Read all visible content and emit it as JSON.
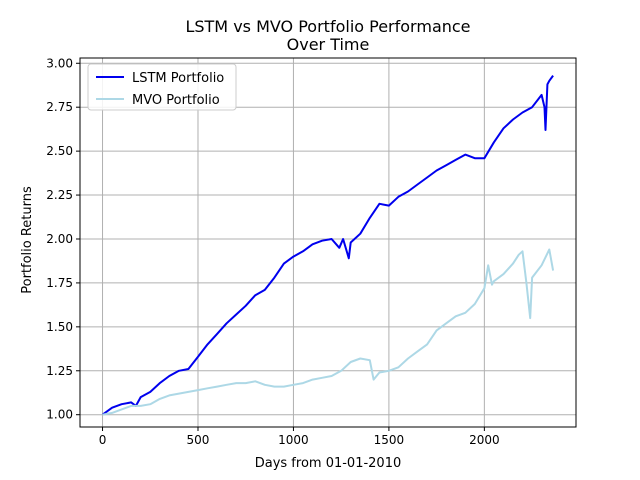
{
  "chart_data": {
    "type": "line",
    "title_line1": "LSTM vs MVO Portfolio Performance",
    "title_line2": "Over Time",
    "xlabel": "Days from 01-01-2010",
    "ylabel": "Portfolio Returns",
    "xlim": [
      -118,
      2480
    ],
    "ylim": [
      0.93,
      3.03
    ],
    "xticks": [
      0,
      500,
      1000,
      1500,
      2000
    ],
    "xtick_labels": [
      "0",
      "500",
      "1000",
      "1500",
      "2000"
    ],
    "yticks": [
      1.0,
      1.25,
      1.5,
      1.75,
      2.0,
      2.25,
      2.5,
      2.75,
      3.0
    ],
    "ytick_labels": [
      "1.00",
      "1.25",
      "1.50",
      "1.75",
      "2.00",
      "2.25",
      "2.50",
      "2.75",
      "3.00"
    ],
    "grid": true,
    "legend_position": "top-left",
    "series": [
      {
        "name": "LSTM Portfolio",
        "color": "#0000ee",
        "points": [
          [
            0,
            1.0
          ],
          [
            50,
            1.04
          ],
          [
            100,
            1.06
          ],
          [
            150,
            1.07
          ],
          [
            175,
            1.05
          ],
          [
            200,
            1.1
          ],
          [
            250,
            1.13
          ],
          [
            300,
            1.18
          ],
          [
            350,
            1.22
          ],
          [
            400,
            1.25
          ],
          [
            450,
            1.26
          ],
          [
            500,
            1.33
          ],
          [
            550,
            1.4
          ],
          [
            600,
            1.46
          ],
          [
            650,
            1.52
          ],
          [
            700,
            1.57
          ],
          [
            750,
            1.62
          ],
          [
            800,
            1.68
          ],
          [
            850,
            1.71
          ],
          [
            900,
            1.78
          ],
          [
            950,
            1.86
          ],
          [
            1000,
            1.9
          ],
          [
            1050,
            1.93
          ],
          [
            1100,
            1.97
          ],
          [
            1150,
            1.99
          ],
          [
            1200,
            2.0
          ],
          [
            1240,
            1.95
          ],
          [
            1260,
            2.0
          ],
          [
            1290,
            1.89
          ],
          [
            1300,
            1.98
          ],
          [
            1350,
            2.03
          ],
          [
            1400,
            2.12
          ],
          [
            1450,
            2.2
          ],
          [
            1500,
            2.19
          ],
          [
            1550,
            2.24
          ],
          [
            1600,
            2.27
          ],
          [
            1650,
            2.31
          ],
          [
            1700,
            2.35
          ],
          [
            1750,
            2.39
          ],
          [
            1800,
            2.42
          ],
          [
            1850,
            2.45
          ],
          [
            1900,
            2.48
          ],
          [
            1950,
            2.46
          ],
          [
            2000,
            2.46
          ],
          [
            2050,
            2.55
          ],
          [
            2100,
            2.63
          ],
          [
            2150,
            2.68
          ],
          [
            2200,
            2.72
          ],
          [
            2250,
            2.75
          ],
          [
            2300,
            2.82
          ],
          [
            2315,
            2.75
          ],
          [
            2320,
            2.62
          ],
          [
            2330,
            2.88
          ],
          [
            2340,
            2.9
          ],
          [
            2360,
            2.93
          ]
        ]
      },
      {
        "name": "MVO Portfolio",
        "color": "#add8e6",
        "points": [
          [
            0,
            1.0
          ],
          [
            50,
            1.01
          ],
          [
            100,
            1.03
          ],
          [
            150,
            1.05
          ],
          [
            200,
            1.05
          ],
          [
            250,
            1.06
          ],
          [
            300,
            1.09
          ],
          [
            350,
            1.11
          ],
          [
            400,
            1.12
          ],
          [
            450,
            1.13
          ],
          [
            500,
            1.14
          ],
          [
            550,
            1.15
          ],
          [
            600,
            1.16
          ],
          [
            650,
            1.17
          ],
          [
            700,
            1.18
          ],
          [
            750,
            1.18
          ],
          [
            800,
            1.19
          ],
          [
            850,
            1.17
          ],
          [
            900,
            1.16
          ],
          [
            950,
            1.16
          ],
          [
            1000,
            1.17
          ],
          [
            1050,
            1.18
          ],
          [
            1100,
            1.2
          ],
          [
            1150,
            1.21
          ],
          [
            1200,
            1.22
          ],
          [
            1250,
            1.25
          ],
          [
            1300,
            1.3
          ],
          [
            1350,
            1.32
          ],
          [
            1400,
            1.31
          ],
          [
            1420,
            1.2
          ],
          [
            1450,
            1.24
          ],
          [
            1500,
            1.25
          ],
          [
            1550,
            1.27
          ],
          [
            1600,
            1.32
          ],
          [
            1650,
            1.36
          ],
          [
            1700,
            1.4
          ],
          [
            1750,
            1.48
          ],
          [
            1800,
            1.52
          ],
          [
            1850,
            1.56
          ],
          [
            1900,
            1.58
          ],
          [
            1950,
            1.63
          ],
          [
            2000,
            1.72
          ],
          [
            2020,
            1.85
          ],
          [
            2040,
            1.74
          ],
          [
            2050,
            1.76
          ],
          [
            2100,
            1.8
          ],
          [
            2150,
            1.86
          ],
          [
            2180,
            1.91
          ],
          [
            2200,
            1.93
          ],
          [
            2220,
            1.75
          ],
          [
            2240,
            1.55
          ],
          [
            2250,
            1.78
          ],
          [
            2300,
            1.85
          ],
          [
            2340,
            1.94
          ],
          [
            2360,
            1.82
          ]
        ]
      }
    ]
  }
}
